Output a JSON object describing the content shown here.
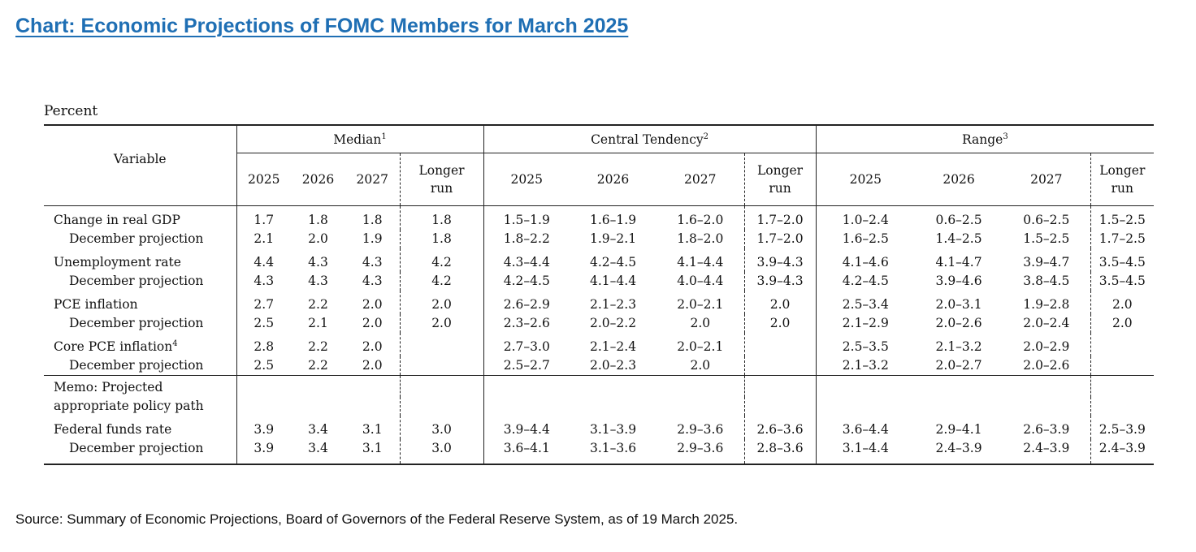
{
  "title": "Chart: Economic Projections of FOMC Members for March 2025",
  "unit_label": "Percent",
  "source": "Source: Summary of Economic Projections, Board of Governors of the Federal Reserve System, as of 19 March 2025.",
  "chart_data": {
    "type": "table",
    "title": "Chart: Economic Projections of FOMC Members for March 2025",
    "unit": "Percent",
    "variable_header": "Variable",
    "groups": [
      {
        "label": "Median",
        "note": "1"
      },
      {
        "label": "Central Tendency",
        "note": "2"
      },
      {
        "label": "Range",
        "note": "3"
      }
    ],
    "periods": [
      "2025",
      "2026",
      "2027",
      "Longer run"
    ],
    "periods_line1": [
      "2025",
      "2026",
      "2027",
      "Longer"
    ],
    "periods_line2": [
      "",
      "",
      "",
      "run"
    ],
    "rows": [
      {
        "label": "Change in real GDP",
        "note": "",
        "sub": false,
        "cells": [
          "1.7",
          "1.8",
          "1.8",
          "1.8",
          "1.5–1.9",
          "1.6–1.9",
          "1.6–2.0",
          "1.7–2.0",
          "1.0–2.4",
          "0.6–2.5",
          "0.6–2.5",
          "1.5–2.5"
        ]
      },
      {
        "label": "December projection",
        "note": "",
        "sub": true,
        "cells": [
          "2.1",
          "2.0",
          "1.9",
          "1.8",
          "1.8–2.2",
          "1.9–2.1",
          "1.8–2.0",
          "1.7–2.0",
          "1.6–2.5",
          "1.4–2.5",
          "1.5–2.5",
          "1.7–2.5"
        ]
      },
      {
        "label": "Unemployment rate",
        "note": "",
        "sub": false,
        "cells": [
          "4.4",
          "4.3",
          "4.3",
          "4.2",
          "4.3–4.4",
          "4.2–4.5",
          "4.1–4.4",
          "3.9–4.3",
          "4.1–4.6",
          "4.1–4.7",
          "3.9–4.7",
          "3.5–4.5"
        ]
      },
      {
        "label": "December projection",
        "note": "",
        "sub": true,
        "cells": [
          "4.3",
          "4.3",
          "4.3",
          "4.2",
          "4.2–4.5",
          "4.1–4.4",
          "4.0–4.4",
          "3.9–4.3",
          "4.2–4.5",
          "3.9–4.6",
          "3.8–4.5",
          "3.5–4.5"
        ]
      },
      {
        "label": "PCE inflation",
        "note": "",
        "sub": false,
        "cells": [
          "2.7",
          "2.2",
          "2.0",
          "2.0",
          "2.6–2.9",
          "2.1–2.3",
          "2.0–2.1",
          "2.0",
          "2.5–3.4",
          "2.0–3.1",
          "1.9–2.8",
          "2.0"
        ]
      },
      {
        "label": "December projection",
        "note": "",
        "sub": true,
        "cells": [
          "2.5",
          "2.1",
          "2.0",
          "2.0",
          "2.3–2.6",
          "2.0–2.2",
          "2.0",
          "2.0",
          "2.1–2.9",
          "2.0–2.6",
          "2.0–2.4",
          "2.0"
        ]
      },
      {
        "label": "Core PCE inflation",
        "note": "4",
        "sub": false,
        "cells": [
          "2.8",
          "2.2",
          "2.0",
          "",
          "2.7–3.0",
          "2.1–2.4",
          "2.0–2.1",
          "",
          "2.5–3.5",
          "2.1–3.2",
          "2.0–2.9",
          ""
        ]
      },
      {
        "label": "December projection",
        "note": "",
        "sub": true,
        "cells": [
          "2.5",
          "2.2",
          "2.0",
          "",
          "2.5–2.7",
          "2.0–2.3",
          "2.0",
          "",
          "2.1–3.2",
          "2.0–2.7",
          "2.0–2.6",
          ""
        ]
      }
    ],
    "memo_label_line1": "Memo: Projected",
    "memo_label_line2": "appropriate policy path",
    "memo_rows": [
      {
        "label": "Federal funds rate",
        "note": "",
        "sub": false,
        "cells": [
          "3.9",
          "3.4",
          "3.1",
          "3.0",
          "3.9–4.4",
          "3.1–3.9",
          "2.9–3.6",
          "2.6–3.6",
          "3.6–4.4",
          "2.9–4.1",
          "2.6–3.9",
          "2.5–3.9"
        ]
      },
      {
        "label": "December projection",
        "note": "",
        "sub": true,
        "cells": [
          "3.9",
          "3.4",
          "3.1",
          "3.0",
          "3.6–4.1",
          "3.1–3.6",
          "2.9–3.6",
          "2.8–3.6",
          "3.1–4.4",
          "2.4–3.9",
          "2.4–3.9",
          "2.4–3.9"
        ]
      }
    ]
  }
}
